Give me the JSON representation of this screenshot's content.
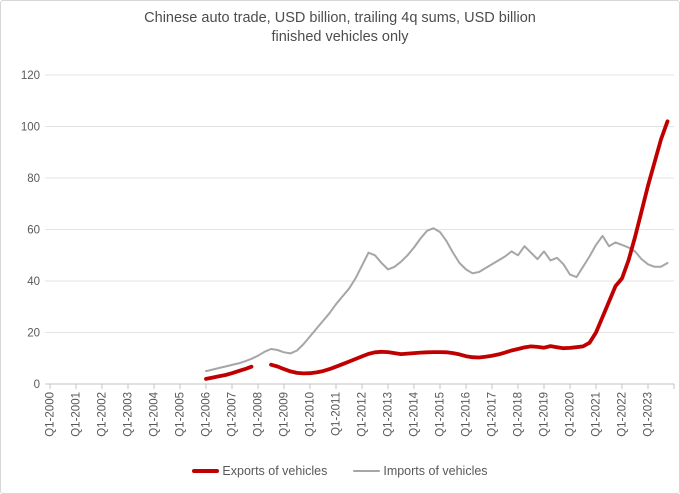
{
  "chart_data": {
    "type": "line",
    "title": "Chinese auto trade, USD billion, trailing 4q sums, USD billion finished vehicles only",
    "title_lines": [
      "Chinese auto trade, USD billion, trailing 4q sums, USD billion",
      "finished vehicles only"
    ],
    "xlabel": "",
    "ylabel": "",
    "ylim": [
      0,
      120
    ],
    "y_ticks": [
      0,
      20,
      40,
      60,
      80,
      100,
      120
    ],
    "grid": "horizontal",
    "legend_position": "bottom",
    "x_unit": "quarter",
    "x_tick_labels": [
      "Q1-2000",
      "Q1-2001",
      "Q1-2002",
      "Q1-2003",
      "Q1-2004",
      "Q1-2005",
      "Q1-2006",
      "Q1-2007",
      "Q1-2008",
      "Q1-2009",
      "Q1-2010",
      "Q1-2011",
      "Q1-2012",
      "Q1-2013",
      "Q1-2014",
      "Q1-2015",
      "Q1-2016",
      "Q1-2017",
      "Q1-2018",
      "Q1-2019",
      "Q1-2020",
      "Q1-2021",
      "Q1-2022",
      "Q1-2023"
    ],
    "colors": {
      "grid": "#e3e3e3",
      "axis": "#c3c3c3",
      "tick_text": "#595959",
      "title_text": "#4d4d4d"
    },
    "series": [
      {
        "id": "exports",
        "name": "Exports of vehicles",
        "color": "#c00000",
        "stroke_width": 3.8,
        "segments": [
          {
            "start": "Q1-2006",
            "values": [
              2.0,
              2.5,
              3.0,
              3.5,
              4.2,
              5.0,
              5.8,
              6.7
            ]
          },
          {
            "start": "Q3-2008",
            "values": [
              7.5,
              6.8,
              5.8,
              4.9,
              4.3,
              4.1,
              4.2,
              4.5,
              5.0,
              5.8,
              6.7,
              7.7,
              8.7,
              9.7,
              10.7,
              11.7,
              12.3,
              12.5,
              12.4,
              12.0,
              11.6,
              11.8,
              12.0,
              12.2,
              12.3,
              12.4,
              12.4,
              12.3,
              12.0,
              11.5,
              10.8,
              10.4,
              10.3,
              10.6,
              11.0,
              11.5,
              12.2,
              13.0,
              13.6,
              14.2,
              14.6,
              14.4,
              14.1,
              14.7,
              14.3,
              13.9,
              14.0,
              14.3,
              14.6,
              16.0,
              20,
              26,
              32,
              38,
              41,
              48,
              57,
              67,
              77,
              86,
              95,
              102
            ]
          }
        ]
      },
      {
        "id": "imports",
        "name": "Imports of vehicles",
        "color": "#a6a6a6",
        "stroke_width": 2,
        "segments": [
          {
            "start": "Q1-2006",
            "values": [
              5.0,
              5.6,
              6.2,
              6.8,
              7.4,
              8.0,
              8.8,
              9.8,
              11.0,
              12.5,
              13.6,
              13.2,
              12.3,
              11.9,
              13.0,
              15.5,
              18.5,
              21.5,
              24.5,
              27.5,
              31,
              34,
              37,
              41,
              46,
              51,
              50,
              47,
              44.5,
              45.5,
              47.5,
              50,
              53,
              56.5,
              59.5,
              60.5,
              59,
              55.5,
              51,
              47,
              44.5,
              43,
              43.5,
              45,
              46.5,
              48,
              49.5,
              51.5,
              50,
              53.5,
              51,
              48.5,
              51.5,
              48,
              49,
              46.5,
              42.5,
              41.5,
              45.5,
              49.5,
              54,
              57.5,
              53.5,
              55,
              54,
              53,
              51.5,
              48.5,
              46.5,
              45.5,
              45.5,
              47
            ]
          }
        ]
      }
    ]
  }
}
